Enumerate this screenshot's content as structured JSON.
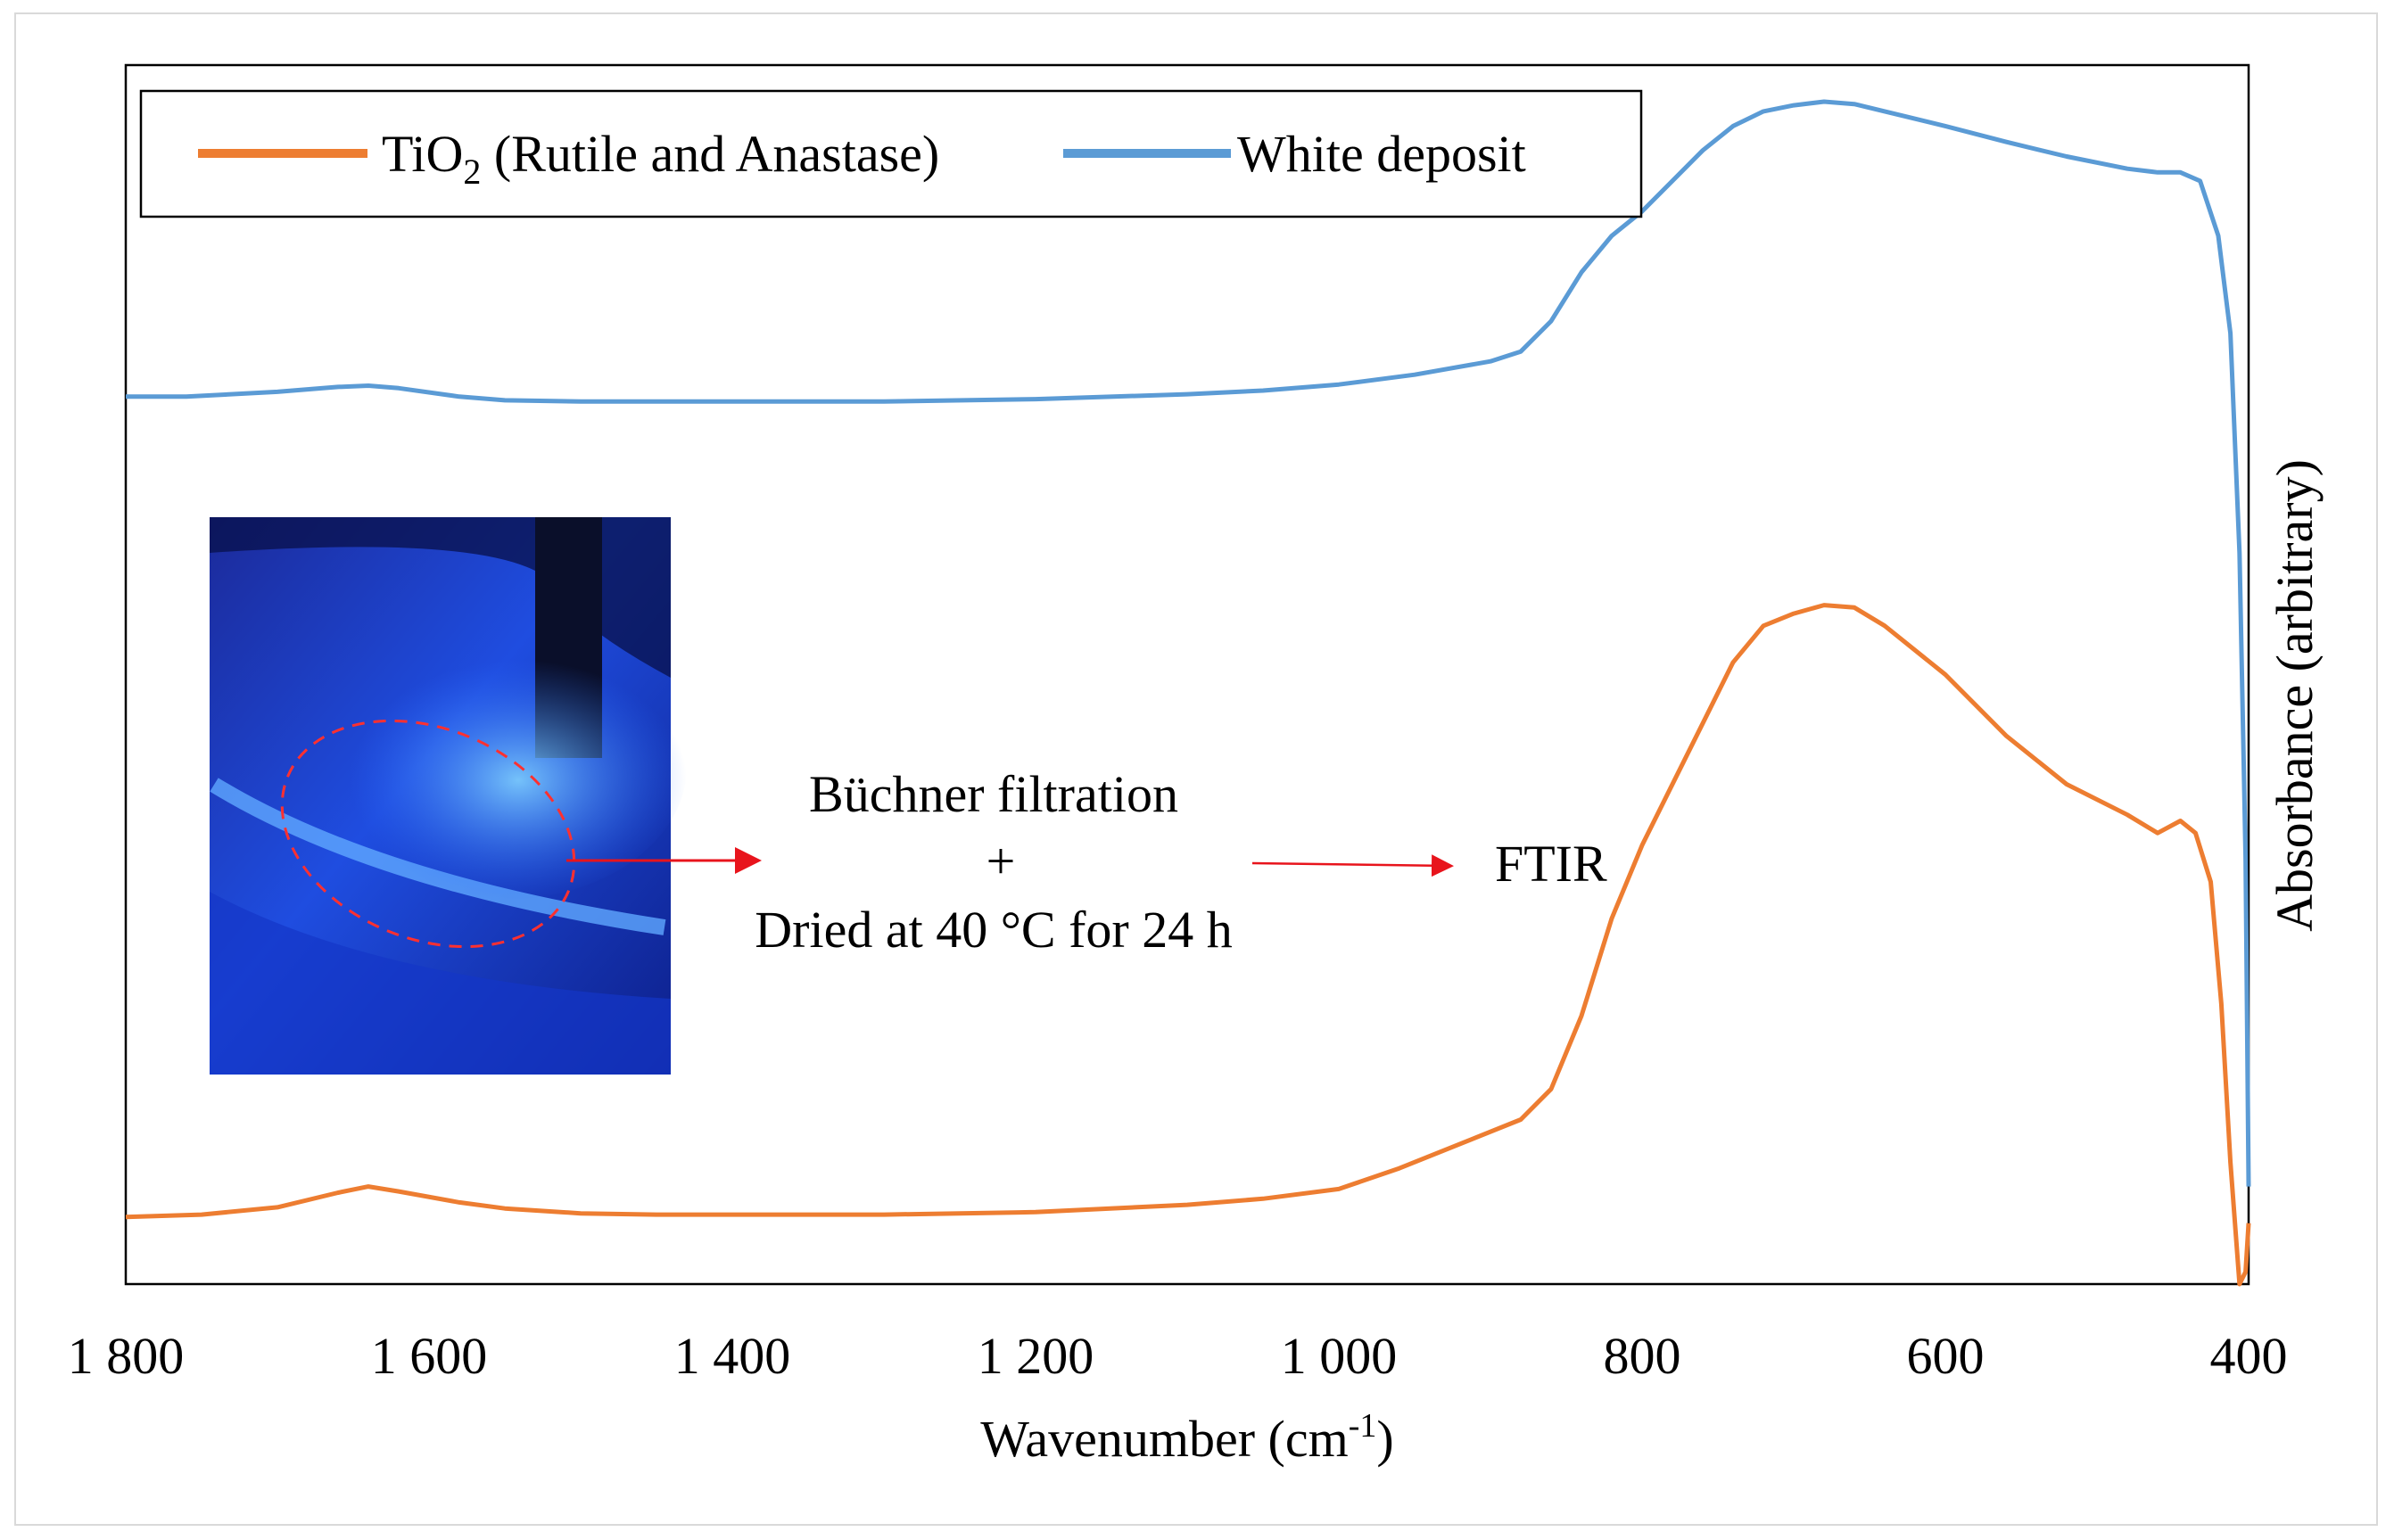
{
  "chart_data": {
    "type": "line",
    "title": "",
    "xlabel": "Wavenumber (cm",
    "xlabel_sup": "-1",
    "xlabel_end": ")",
    "ylabel": "Absorbance (arbitrary)",
    "xlim": [
      1800,
      400
    ],
    "x_reversed": true,
    "y_ticks_shown": false,
    "grid": false,
    "legend_position": "top-left",
    "xticks": [
      {
        "value": 1800,
        "label": "1 800"
      },
      {
        "value": 1600,
        "label": "1 600"
      },
      {
        "value": 1400,
        "label": "1 400"
      },
      {
        "value": 1200,
        "label": "1 200"
      },
      {
        "value": 1000,
        "label": "1 000"
      },
      {
        "value": 800,
        "label": "800"
      },
      {
        "value": 600,
        "label": "600"
      },
      {
        "value": 400,
        "label": "400"
      }
    ],
    "series": [
      {
        "name": "TiO2 (Rutile and Anastase)",
        "legend_main": "TiO",
        "legend_sub": "2",
        "legend_rest": " (Rutile and Anastase)",
        "color": "#ed7d31",
        "points": [
          [
            1800,
            0.055
          ],
          [
            1750,
            0.057
          ],
          [
            1700,
            0.063
          ],
          [
            1660,
            0.075
          ],
          [
            1640,
            0.08
          ],
          [
            1620,
            0.076
          ],
          [
            1580,
            0.067
          ],
          [
            1550,
            0.062
          ],
          [
            1500,
            0.058
          ],
          [
            1450,
            0.057
          ],
          [
            1400,
            0.057
          ],
          [
            1300,
            0.057
          ],
          [
            1200,
            0.059
          ],
          [
            1100,
            0.065
          ],
          [
            1050,
            0.07
          ],
          [
            1000,
            0.078
          ],
          [
            960,
            0.095
          ],
          [
            920,
            0.115
          ],
          [
            880,
            0.135
          ],
          [
            860,
            0.16
          ],
          [
            840,
            0.22
          ],
          [
            820,
            0.3
          ],
          [
            800,
            0.36
          ],
          [
            780,
            0.41
          ],
          [
            760,
            0.46
          ],
          [
            740,
            0.51
          ],
          [
            720,
            0.54
          ],
          [
            700,
            0.55
          ],
          [
            680,
            0.557
          ],
          [
            660,
            0.555
          ],
          [
            640,
            0.54
          ],
          [
            600,
            0.5
          ],
          [
            560,
            0.45
          ],
          [
            520,
            0.41
          ],
          [
            480,
            0.385
          ],
          [
            460,
            0.37
          ],
          [
            445,
            0.38
          ],
          [
            435,
            0.37
          ],
          [
            425,
            0.33
          ],
          [
            418,
            0.23
          ],
          [
            412,
            0.1
          ],
          [
            406,
            0.0
          ],
          [
            402,
            0.01
          ],
          [
            400,
            0.05
          ]
        ]
      },
      {
        "name": "White deposit",
        "legend_main": "White deposit",
        "legend_sub": "",
        "legend_rest": "",
        "color": "#5b9bd5",
        "points": [
          [
            1800,
            0.728
          ],
          [
            1760,
            0.728
          ],
          [
            1700,
            0.732
          ],
          [
            1660,
            0.736
          ],
          [
            1640,
            0.737
          ],
          [
            1620,
            0.735
          ],
          [
            1580,
            0.728
          ],
          [
            1550,
            0.725
          ],
          [
            1500,
            0.724
          ],
          [
            1400,
            0.724
          ],
          [
            1300,
            0.724
          ],
          [
            1200,
            0.726
          ],
          [
            1100,
            0.73
          ],
          [
            1050,
            0.733
          ],
          [
            1000,
            0.738
          ],
          [
            950,
            0.746
          ],
          [
            900,
            0.757
          ],
          [
            880,
            0.765
          ],
          [
            860,
            0.79
          ],
          [
            840,
            0.83
          ],
          [
            820,
            0.86
          ],
          [
            800,
            0.88
          ],
          [
            780,
            0.905
          ],
          [
            760,
            0.93
          ],
          [
            740,
            0.95
          ],
          [
            720,
            0.962
          ],
          [
            700,
            0.967
          ],
          [
            680,
            0.97
          ],
          [
            660,
            0.968
          ],
          [
            640,
            0.962
          ],
          [
            600,
            0.95
          ],
          [
            560,
            0.937
          ],
          [
            520,
            0.925
          ],
          [
            480,
            0.915
          ],
          [
            460,
            0.912
          ],
          [
            445,
            0.912
          ],
          [
            432,
            0.905
          ],
          [
            420,
            0.86
          ],
          [
            412,
            0.78
          ],
          [
            406,
            0.6
          ],
          [
            402,
            0.35
          ],
          [
            400,
            0.08
          ]
        ]
      }
    ],
    "inset": {
      "step1_line1": "Büchner filtration",
      "step1_plus": "+",
      "step1_line2": "Dried at 40 °C for 24 h",
      "step2": "FTIR"
    }
  }
}
